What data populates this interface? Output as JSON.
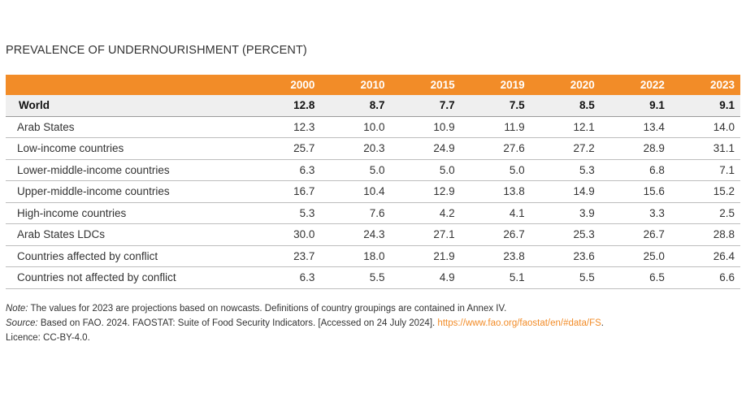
{
  "title": "PREVALENCE OF UNDERNOURISHMENT (PERCENT)",
  "table": {
    "header_first": "",
    "years": [
      "2000",
      "2010",
      "2015",
      "2019",
      "2020",
      "2022",
      "2023"
    ],
    "rows": [
      {
        "label": "World",
        "values": [
          "12.8",
          "8.7",
          "7.7",
          "7.5",
          "8.5",
          "9.1",
          "9.1"
        ]
      },
      {
        "label": "Arab States",
        "values": [
          "12.3",
          "10.0",
          "10.9",
          "11.9",
          "12.1",
          "13.4",
          "14.0"
        ]
      },
      {
        "label": "Low-income countries",
        "values": [
          "25.7",
          "20.3",
          "24.9",
          "27.6",
          "27.2",
          "28.9",
          "31.1"
        ]
      },
      {
        "label": "Lower-middle-income countries",
        "values": [
          "6.3",
          "5.0",
          "5.0",
          "5.0",
          "5.3",
          "6.8",
          "7.1"
        ]
      },
      {
        "label": "Upper-middle-income countries",
        "values": [
          "16.7",
          "10.4",
          "12.9",
          "13.8",
          "14.9",
          "15.6",
          "15.2"
        ]
      },
      {
        "label": "High-income countries",
        "values": [
          "5.3",
          "7.6",
          "4.2",
          "4.1",
          "3.9",
          "3.3",
          "2.5"
        ]
      },
      {
        "label": "Arab States LDCs",
        "values": [
          "30.0",
          "24.3",
          "27.1",
          "26.7",
          "25.3",
          "26.7",
          "28.8"
        ]
      },
      {
        "label": "Countries affected by conflict",
        "values": [
          "23.7",
          "18.0",
          "21.9",
          "23.8",
          "23.6",
          "25.0",
          "26.4"
        ]
      },
      {
        "label": "Countries not affected by conflict",
        "values": [
          "6.3",
          "5.5",
          "4.9",
          "5.1",
          "5.5",
          "6.5",
          "6.6"
        ]
      }
    ]
  },
  "notes": {
    "note_label": "Note:",
    "note_text": " The values for 2023 are projections based on nowcasts. Definitions of country groupings are contained in Annex IV.",
    "source_label": "Source:",
    "source_text": " Based on FAO. 2024. FAOSTAT: Suite of Food Security Indicators. [Accessed on 24 July 2024]. ",
    "source_link": "https://www.fao.org/faostat/en/#data/FS",
    "source_end": ".",
    "licence": "Licence: CC-BY-4.0."
  },
  "colors": {
    "accent": "#f28c28",
    "world_row_bg": "#efefef"
  }
}
